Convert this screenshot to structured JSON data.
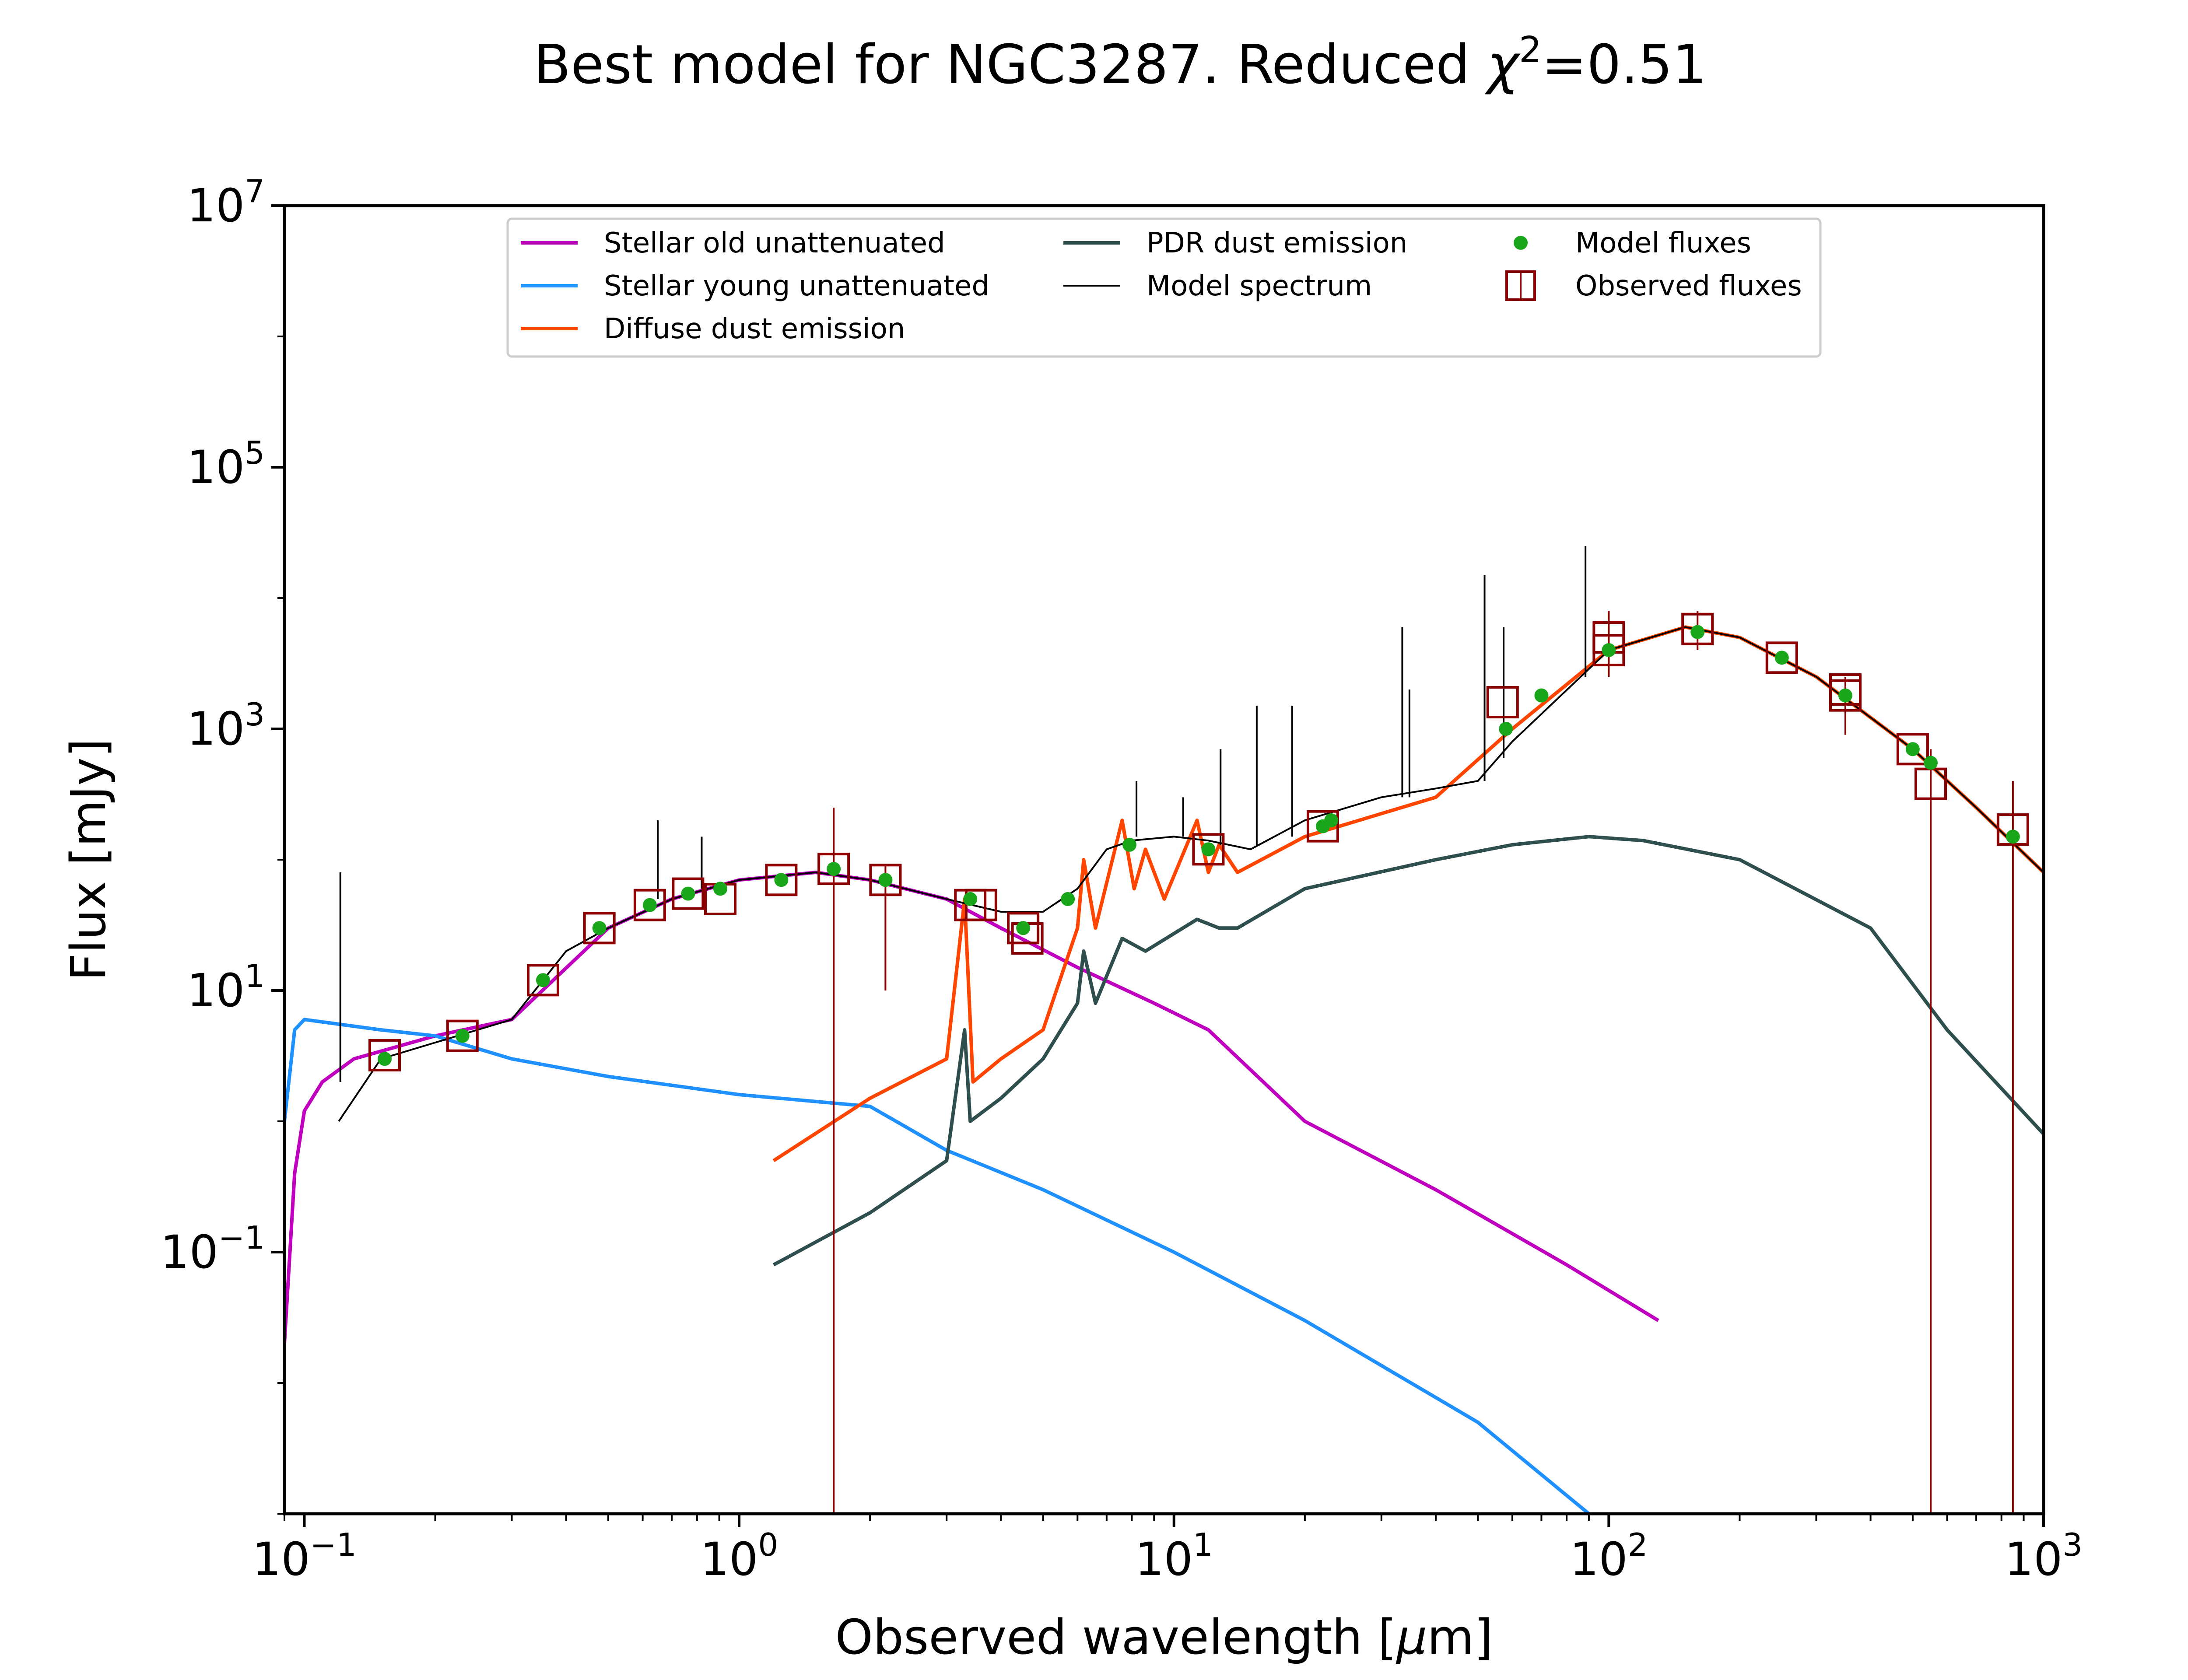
{
  "chart_data": {
    "type": "line",
    "title_parts": [
      "Best model for NGC3287. Reduced ",
      "χ",
      "2",
      "=0.51"
    ],
    "xlabel_parts": [
      "Observed wavelength [",
      "μ",
      "m]"
    ],
    "ylabel": "Flux [mJy]",
    "xscale": "log",
    "yscale": "log",
    "xlim": [
      0.09,
      1000
    ],
    "ylim": [
      0.001,
      10000000
    ],
    "grid": false,
    "legend_position": "top",
    "x_ticks": [
      {
        "value": 0.1,
        "base": "10",
        "exp": "−1"
      },
      {
        "value": 1,
        "base": "10",
        "exp": "0"
      },
      {
        "value": 10,
        "base": "10",
        "exp": "1"
      },
      {
        "value": 100,
        "base": "10",
        "exp": "2"
      },
      {
        "value": 1000,
        "base": "10",
        "exp": "3"
      }
    ],
    "y_ticks": [
      {
        "value": 0.1,
        "base": "10",
        "exp": "−1"
      },
      {
        "value": 10,
        "base": "10",
        "exp": "1"
      },
      {
        "value": 1000,
        "base": "10",
        "exp": "3"
      },
      {
        "value": 100000,
        "base": "10",
        "exp": "5"
      },
      {
        "value": 10000000,
        "base": "10",
        "exp": "7"
      }
    ],
    "legend": [
      {
        "label": "Stellar old unattenuated",
        "color": "#bf00bf",
        "kind": "line"
      },
      {
        "label": "Stellar young unattenuated",
        "color": "#1e90ff",
        "kind": "line"
      },
      {
        "label": "Diffuse dust emission",
        "color": "#ff4500",
        "kind": "line"
      },
      {
        "label": "PDR dust emission",
        "color": "#2f4f4f",
        "kind": "line"
      },
      {
        "label": "Model spectrum",
        "color": "#000000",
        "kind": "thin-line"
      },
      {
        "label": "Model fluxes",
        "color": "#1aa61a",
        "kind": "dot"
      },
      {
        "label": "Observed fluxes",
        "color": "#8b0000",
        "kind": "square"
      }
    ],
    "series": [
      {
        "color": "#bf00bf",
        "points": [
          [
            0.09,
            0.02
          ],
          [
            0.095,
            0.4
          ],
          [
            0.1,
            1.2
          ],
          [
            0.11,
            2
          ],
          [
            0.13,
            3
          ],
          [
            0.2,
            4.5
          ],
          [
            0.3,
            6
          ],
          [
            0.5,
            30
          ],
          [
            0.7,
            50
          ],
          [
            1,
            70
          ],
          [
            1.5,
            80
          ],
          [
            2,
            70
          ],
          [
            3,
            50
          ],
          [
            4,
            30
          ],
          [
            6,
            15
          ],
          [
            9,
            8
          ],
          [
            12,
            5
          ],
          [
            20,
            1
          ],
          [
            40,
            0.3
          ],
          [
            80,
            0.08
          ],
          [
            130,
            0.03
          ]
        ]
      },
      {
        "color": "#1e90ff",
        "points": [
          [
            0.09,
            1
          ],
          [
            0.095,
            5
          ],
          [
            0.1,
            6
          ],
          [
            0.15,
            5
          ],
          [
            0.2,
            4.5
          ],
          [
            0.3,
            3
          ],
          [
            0.5,
            2.2
          ],
          [
            1,
            1.6
          ],
          [
            2,
            1.3
          ],
          [
            3,
            0.6
          ],
          [
            5,
            0.3
          ],
          [
            10,
            0.1
          ],
          [
            20,
            0.03
          ],
          [
            50,
            0.005
          ],
          [
            90,
            0.001
          ]
        ]
      },
      {
        "color": "#ff4500",
        "points": [
          [
            1.2,
            0.5
          ],
          [
            2,
            1.5
          ],
          [
            3,
            3
          ],
          [
            3.2,
            20
          ],
          [
            3.3,
            50
          ],
          [
            3.45,
            2
          ],
          [
            4,
            3
          ],
          [
            5,
            5
          ],
          [
            6,
            30
          ],
          [
            6.2,
            100
          ],
          [
            6.6,
            30
          ],
          [
            7.6,
            200
          ],
          [
            8.1,
            60
          ],
          [
            8.6,
            120
          ],
          [
            9.5,
            50
          ],
          [
            11.3,
            200
          ],
          [
            12,
            80
          ],
          [
            12.7,
            130
          ],
          [
            14,
            80
          ],
          [
            20,
            150
          ],
          [
            40,
            300
          ],
          [
            60,
            1000
          ],
          [
            100,
            4000
          ],
          [
            150,
            6000
          ],
          [
            200,
            5000
          ],
          [
            300,
            2500
          ],
          [
            500,
            700
          ],
          [
            700,
            250
          ],
          [
            1000,
            80
          ]
        ]
      },
      {
        "color": "#2f4f4f",
        "points": [
          [
            1.2,
            0.08
          ],
          [
            2,
            0.2
          ],
          [
            3,
            0.5
          ],
          [
            3.3,
            5
          ],
          [
            3.4,
            1
          ],
          [
            4,
            1.5
          ],
          [
            5,
            3
          ],
          [
            6,
            8
          ],
          [
            6.2,
            20
          ],
          [
            6.6,
            8
          ],
          [
            7.6,
            25
          ],
          [
            8.6,
            20
          ],
          [
            11.3,
            35
          ],
          [
            12.7,
            30
          ],
          [
            14,
            30
          ],
          [
            20,
            60
          ],
          [
            40,
            100
          ],
          [
            60,
            130
          ],
          [
            90,
            150
          ],
          [
            120,
            140
          ],
          [
            200,
            100
          ],
          [
            400,
            30
          ],
          [
            600,
            5
          ],
          [
            1000,
            0.8
          ]
        ]
      },
      {
        "color": "#000000",
        "points": [
          [
            0.12,
            1
          ],
          [
            0.15,
            3
          ],
          [
            0.2,
            4
          ],
          [
            0.3,
            6
          ],
          [
            0.4,
            20
          ],
          [
            0.5,
            30
          ],
          [
            0.7,
            50
          ],
          [
            1,
            70
          ],
          [
            1.5,
            80
          ],
          [
            2,
            70
          ],
          [
            3,
            50
          ],
          [
            4,
            40
          ],
          [
            5,
            40
          ],
          [
            6,
            60
          ],
          [
            7,
            120
          ],
          [
            8,
            140
          ],
          [
            10,
            150
          ],
          [
            12,
            140
          ],
          [
            15,
            120
          ],
          [
            20,
            200
          ],
          [
            30,
            300
          ],
          [
            40,
            350
          ],
          [
            50,
            400
          ],
          [
            60,
            800
          ],
          [
            100,
            4000
          ],
          [
            150,
            6000
          ],
          [
            200,
            5000
          ],
          [
            300,
            2500
          ],
          [
            500,
            700
          ],
          [
            700,
            250
          ],
          [
            1000,
            80
          ]
        ]
      }
    ],
    "emission_lines": [
      {
        "x": 0.121,
        "ybase": 2,
        "ypeak": 80
      },
      {
        "x": 0.65,
        "ybase": 50,
        "ypeak": 200
      },
      {
        "x": 0.82,
        "ybase": 60,
        "ypeak": 150
      },
      {
        "x": 8.2,
        "ybase": 150,
        "ypeak": 400
      },
      {
        "x": 10.5,
        "ybase": 150,
        "ypeak": 300
      },
      {
        "x": 12.8,
        "ybase": 130,
        "ypeak": 700
      },
      {
        "x": 15.5,
        "ybase": 130,
        "ypeak": 1500
      },
      {
        "x": 18.7,
        "ybase": 150,
        "ypeak": 1500
      },
      {
        "x": 33.5,
        "ybase": 300,
        "ypeak": 6000
      },
      {
        "x": 34.8,
        "ybase": 300,
        "ypeak": 2000
      },
      {
        "x": 51.8,
        "ybase": 400,
        "ypeak": 15000
      },
      {
        "x": 57.3,
        "ybase": 600,
        "ypeak": 6000
      },
      {
        "x": 88.4,
        "ybase": 2500,
        "ypeak": 25000
      }
    ],
    "model_fluxes": [
      [
        0.153,
        3
      ],
      [
        0.231,
        4.5
      ],
      [
        0.354,
        12
      ],
      [
        0.477,
        30
      ],
      [
        0.623,
        45
      ],
      [
        0.763,
        55
      ],
      [
        0.905,
        60
      ],
      [
        1.25,
        70
      ],
      [
        1.65,
        85
      ],
      [
        2.17,
        70
      ],
      [
        3.4,
        50
      ],
      [
        4.5,
        30
      ],
      [
        5.7,
        50
      ],
      [
        7.9,
        130
      ],
      [
        12,
        120
      ],
      [
        22,
        180
      ],
      [
        23,
        200
      ],
      [
        58,
        1000
      ],
      [
        70,
        1800
      ],
      [
        100,
        4000
      ],
      [
        160,
        5500
      ],
      [
        250,
        3500
      ],
      [
        350,
        1800
      ],
      [
        500,
        700
      ],
      [
        550,
        550
      ],
      [
        850,
        150
      ]
    ],
    "observed_fluxes": [
      [
        0.153,
        3.2
      ],
      [
        0.231,
        4.5
      ],
      [
        0.354,
        12
      ],
      [
        0.477,
        30
      ],
      [
        0.623,
        45
      ],
      [
        0.763,
        55
      ],
      [
        0.905,
        50
      ],
      [
        1.25,
        70
      ],
      [
        1.65,
        85
      ],
      [
        2.17,
        70
      ],
      [
        3.4,
        45
      ],
      [
        3.6,
        45
      ],
      [
        4.5,
        30
      ],
      [
        4.6,
        25
      ],
      [
        12,
        120
      ],
      [
        22,
        180
      ],
      [
        57,
        1600
      ],
      [
        100,
        5000
      ],
      [
        100,
        4000
      ],
      [
        160,
        5800
      ],
      [
        250,
        3500
      ],
      [
        350,
        1800
      ],
      [
        350,
        2000
      ],
      [
        500,
        700
      ],
      [
        550,
        380
      ],
      [
        850,
        170
      ]
    ],
    "error_bars": [
      {
        "x": 1.65,
        "ylow": 0.001,
        "yhigh": 250
      },
      {
        "x": 2.17,
        "ylow": 10,
        "yhigh": 90
      },
      {
        "x": 100,
        "ylow": 2500,
        "yhigh": 8000
      },
      {
        "x": 160,
        "ylow": 4000,
        "yhigh": 8000
      },
      {
        "x": 350,
        "ylow": 900,
        "yhigh": 2500
      },
      {
        "x": 550,
        "ylow": 0.001,
        "yhigh": 700
      },
      {
        "x": 850,
        "ylow": 0.001,
        "yhigh": 400
      }
    ]
  }
}
